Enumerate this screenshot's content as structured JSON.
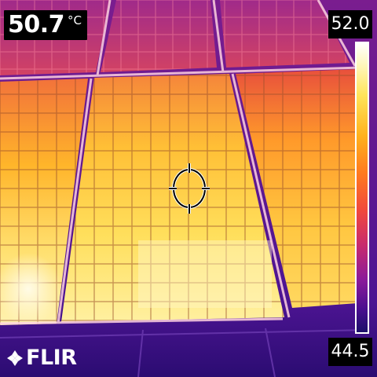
{
  "spot_reading": {
    "value": "50.7",
    "unit": "°C"
  },
  "temperature_scale": {
    "max_label": "52.0",
    "min_label": "44.5",
    "palette": "iron"
  },
  "brand": {
    "logo_text": "FLIR"
  },
  "colors": {
    "hot": "#fff8c0",
    "warm": "#ffb21e",
    "mid": "#f0483d",
    "cool": "#8a1a9a",
    "cold": "#2a0a6a",
    "frame": "#ffffff"
  }
}
